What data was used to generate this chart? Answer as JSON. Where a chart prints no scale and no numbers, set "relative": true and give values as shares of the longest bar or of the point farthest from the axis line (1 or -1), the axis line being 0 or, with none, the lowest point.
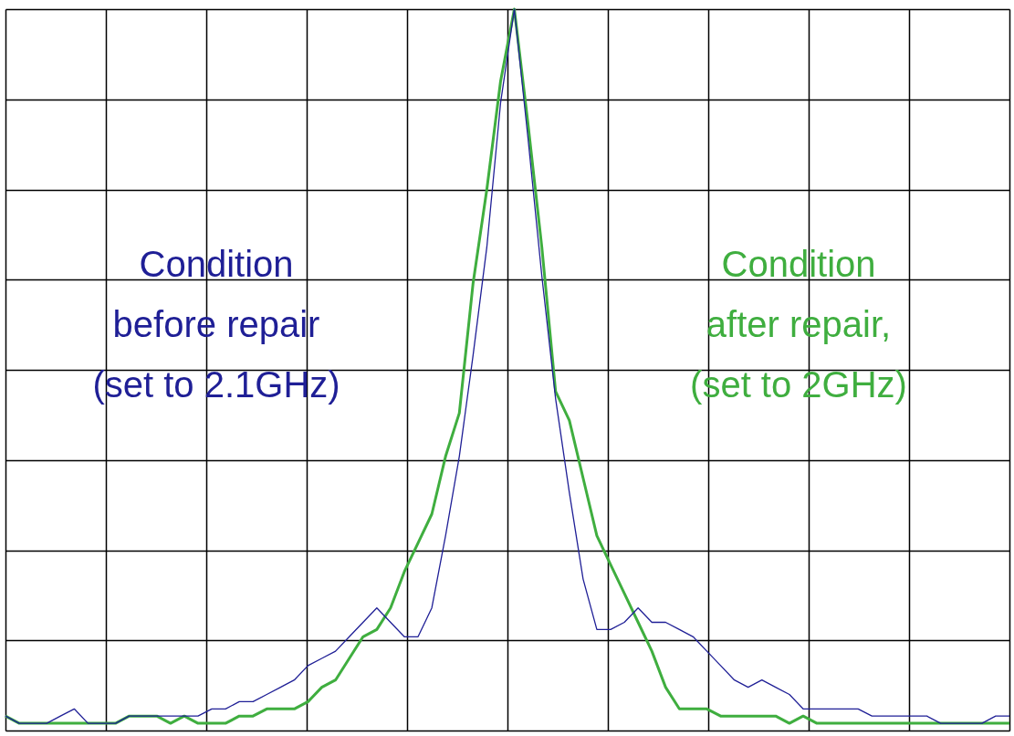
{
  "chart_data": {
    "type": "line",
    "relative": true,
    "grid": true,
    "tick_labels": false,
    "line_style": "solid",
    "marker": "none",
    "categories": [
      null,
      null,
      null,
      null,
      null,
      null,
      null,
      null,
      null,
      null,
      null,
      null,
      null,
      null,
      null,
      null,
      null,
      null,
      null,
      null,
      null,
      null,
      null,
      null,
      null,
      null,
      null,
      null,
      null,
      null,
      null,
      null,
      null,
      null,
      null,
      null,
      null,
      null,
      null,
      null,
      null,
      null,
      null,
      null,
      null,
      null,
      null,
      null,
      null,
      null,
      null,
      null,
      null,
      null,
      null,
      null,
      null,
      null,
      null,
      null,
      null,
      null,
      null,
      null,
      null,
      null,
      null,
      null,
      null,
      null,
      null,
      null,
      null,
      null
    ],
    "series": [
      {
        "name": "Condition\nbefore repair\n(set to 2.1GHz)",
        "color": "#1f1f96",
        "values": [
          0.02,
          0.01,
          0.01,
          0.01,
          0.02,
          0.03,
          0.01,
          0.01,
          0.01,
          0.02,
          0.02,
          0.02,
          0.02,
          0.02,
          0.02,
          0.03,
          0.03,
          0.04,
          0.04,
          0.05,
          0.06,
          0.07,
          0.09,
          0.1,
          0.11,
          0.13,
          0.15,
          0.17,
          0.15,
          0.13,
          0.13,
          0.17,
          0.27,
          0.38,
          0.52,
          0.67,
          0.87,
          1,
          0.82,
          0.63,
          0.46,
          0.33,
          0.21,
          0.14,
          0.14,
          0.15,
          0.17,
          0.15,
          0.15,
          0.14,
          0.13,
          0.11,
          0.09,
          0.07,
          0.06,
          0.07,
          0.06,
          0.05,
          0.03,
          0.03,
          0.03,
          0.03,
          0.03,
          0.02,
          0.02,
          0.02,
          0.02,
          0.02,
          0.01,
          0.01,
          0.01,
          0.01,
          0.02,
          0.02
        ]
      },
      {
        "name": "Condition\nafter repair,\n(set to 2GHz)",
        "color": "#3fae3f",
        "values": [
          0.02,
          0.01,
          0.01,
          0.01,
          0.01,
          0.01,
          0.01,
          0.01,
          0.01,
          0.02,
          0.02,
          0.02,
          0.01,
          0.02,
          0.01,
          0.01,
          0.01,
          0.02,
          0.02,
          0.03,
          0.03,
          0.03,
          0.04,
          0.06,
          0.07,
          0.1,
          0.13,
          0.14,
          0.17,
          0.22,
          0.26,
          0.3,
          0.38,
          0.44,
          0.62,
          0.75,
          0.9,
          1,
          0.84,
          0.67,
          0.47,
          0.43,
          0.35,
          0.27,
          0.23,
          0.19,
          0.15,
          0.11,
          0.06,
          0.03,
          0.03,
          0.03,
          0.02,
          0.02,
          0.02,
          0.02,
          0.02,
          0.01,
          0.02,
          0.01,
          0.01,
          0.01,
          0.01,
          0.01,
          0.01,
          0.01,
          0.01,
          0.01,
          0.01,
          0.01,
          0.01,
          0.01,
          0.01,
          0.01
        ]
      }
    ]
  }
}
